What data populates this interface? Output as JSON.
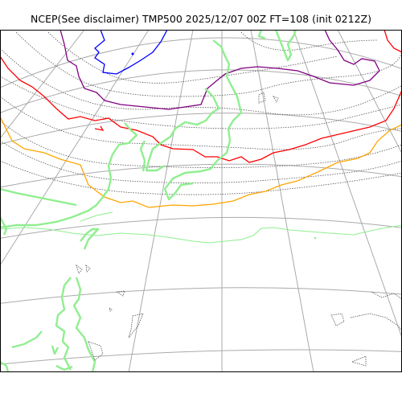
{
  "map": {
    "title": "NCEP(See disclaimer) TMP500 2025/12/07 00Z FT=108 (init 0212Z)",
    "projection": "polar-stereographic",
    "field": "TMP500",
    "contour_colors": {
      "coastline": "#90ee90",
      "graticule": "#aaaaaa",
      "temperature_minor": "#555555",
      "blue_isotherm": "#0000ff",
      "purple_isotherm": "#800080",
      "red_isotherm": "#ff0000",
      "orange_isotherm": "#ffa500",
      "frame": "#000000"
    }
  }
}
